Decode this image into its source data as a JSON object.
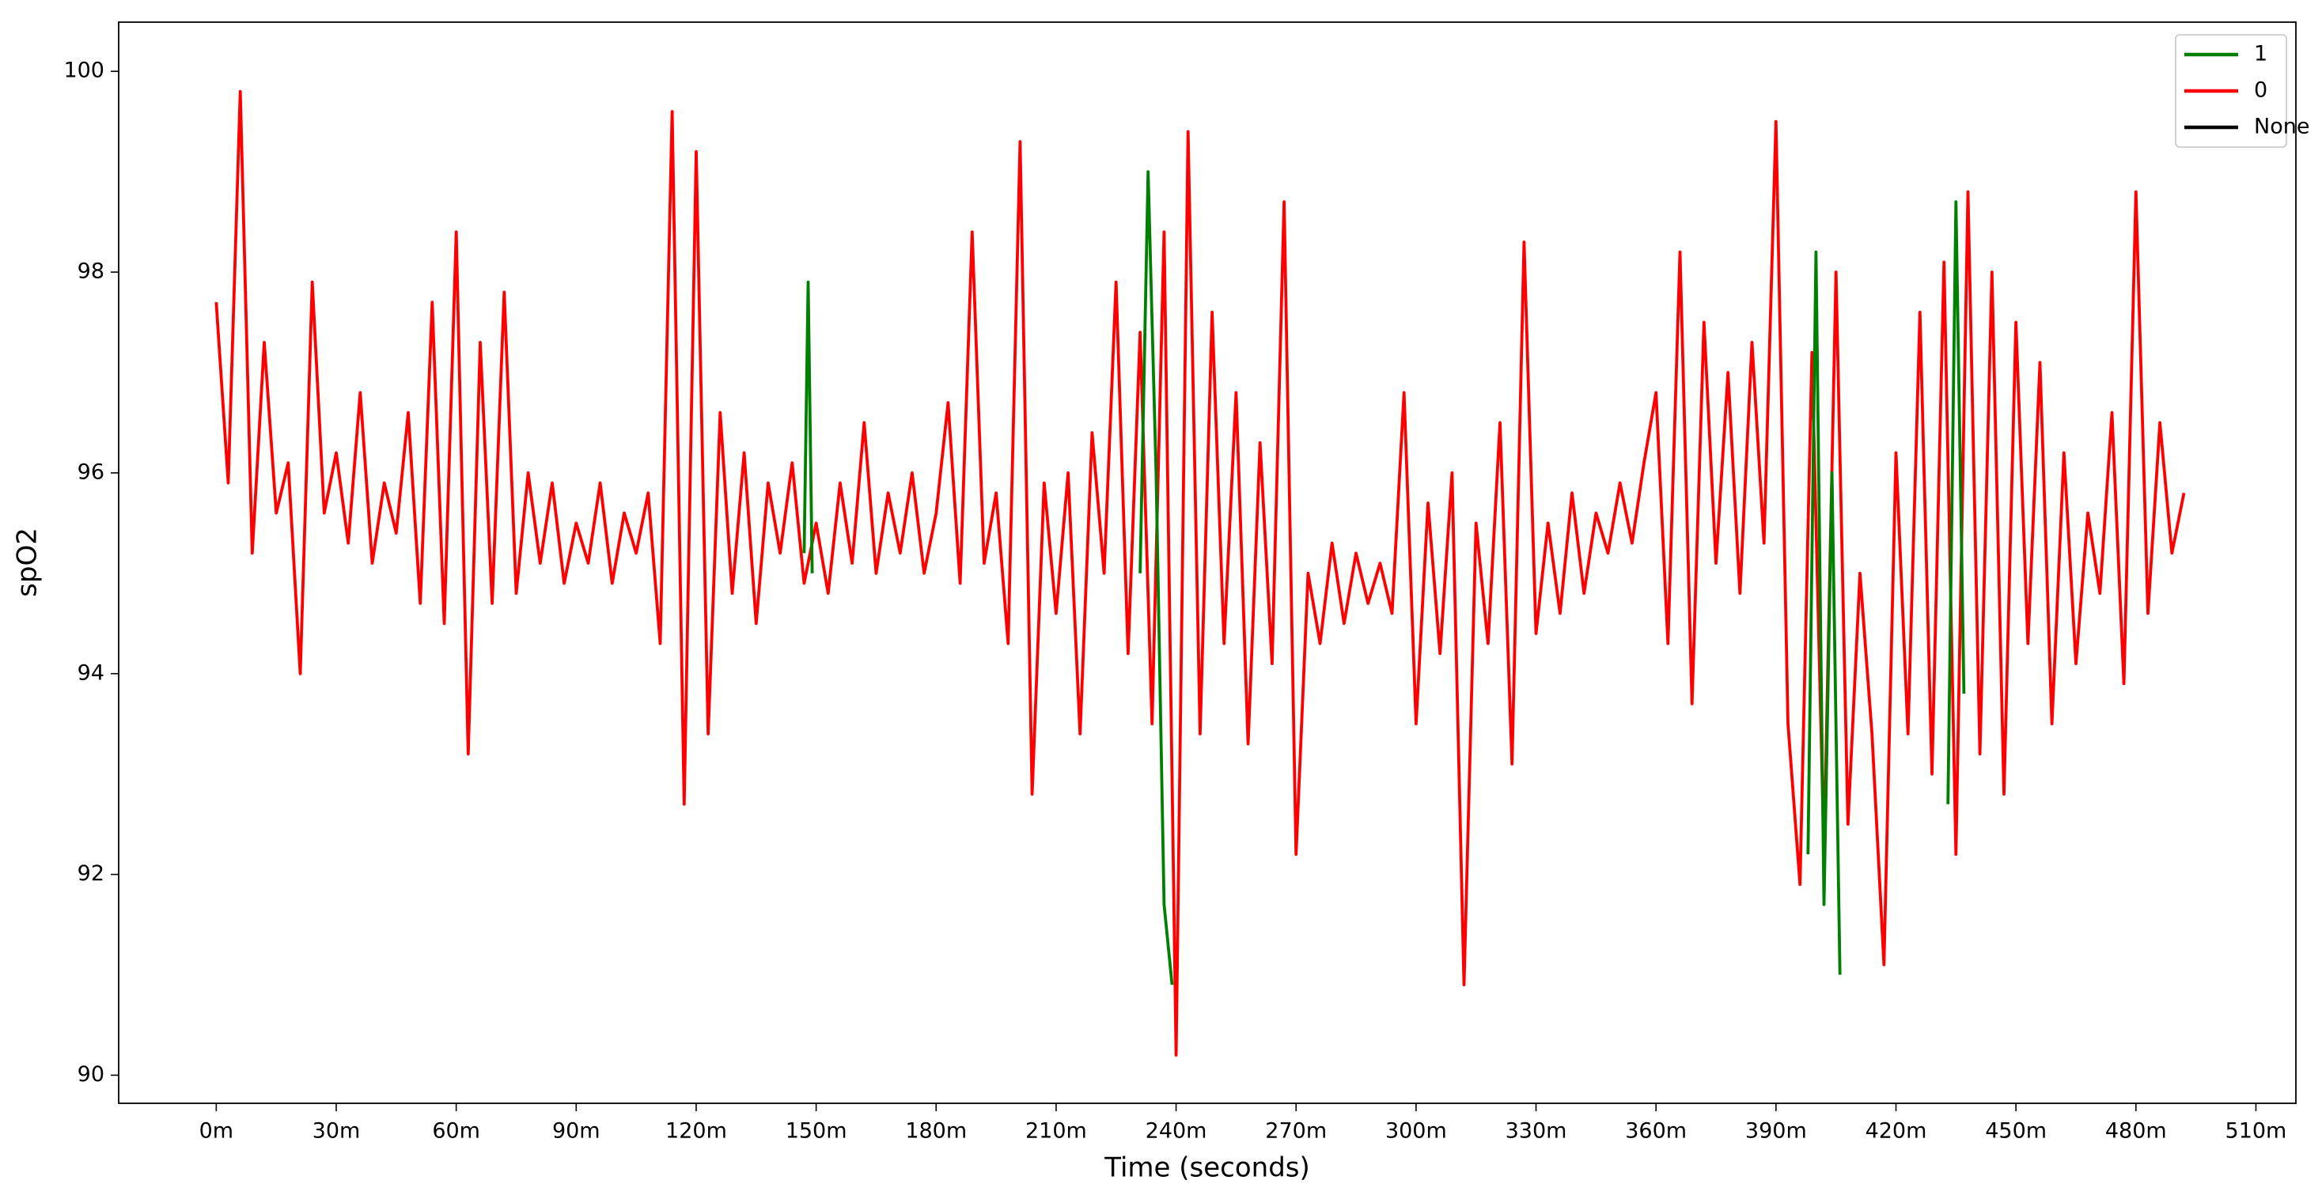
{
  "chart_data": {
    "type": "line",
    "xlabel": "Time (seconds)",
    "ylabel": "spO2",
    "xlim": [
      -24.4,
      520
    ],
    "ylim": [
      89.72,
      100.49
    ],
    "xticks": [
      {
        "value": 0,
        "label": "0m"
      },
      {
        "value": 30,
        "label": "30m"
      },
      {
        "value": 60,
        "label": "60m"
      },
      {
        "value": 90,
        "label": "90m"
      },
      {
        "value": 120,
        "label": "120m"
      },
      {
        "value": 150,
        "label": "150m"
      },
      {
        "value": 180,
        "label": "180m"
      },
      {
        "value": 210,
        "label": "210m"
      },
      {
        "value": 240,
        "label": "240m"
      },
      {
        "value": 270,
        "label": "270m"
      },
      {
        "value": 300,
        "label": "300m"
      },
      {
        "value": 330,
        "label": "330m"
      },
      {
        "value": 360,
        "label": "360m"
      },
      {
        "value": 390,
        "label": "390m"
      },
      {
        "value": 420,
        "label": "420m"
      },
      {
        "value": 450,
        "label": "450m"
      },
      {
        "value": 480,
        "label": "480m"
      },
      {
        "value": 510,
        "label": "510m"
      }
    ],
    "yticks": [
      90,
      92,
      94,
      96,
      98,
      100
    ],
    "legend": "upper right",
    "grid": false,
    "series": [
      {
        "name": "1",
        "color": "#008000",
        "x": [
          147,
          148,
          149,
          150,
          231,
          233,
          235,
          237,
          239,
          300,
          398,
          400,
          402,
          404,
          406,
          420,
          433,
          435,
          437
        ],
        "values": [
          95.2,
          97.9,
          95.0,
          null,
          95.0,
          99.0,
          96.0,
          91.7,
          90.9,
          null,
          92.2,
          98.2,
          91.7,
          96.0,
          91.0,
          null,
          92.7,
          98.7,
          93.8
        ]
      },
      {
        "name": "0",
        "color": "#ff0000",
        "x": [
          0,
          3,
          6,
          9,
          12,
          15,
          18,
          21,
          24,
          27,
          30,
          33,
          36,
          39,
          42,
          45,
          48,
          51,
          54,
          57,
          60,
          63,
          66,
          69,
          72,
          75,
          78,
          81,
          84,
          87,
          90,
          93,
          96,
          99,
          102,
          105,
          108,
          111,
          114,
          117,
          120,
          123,
          126,
          129,
          132,
          135,
          138,
          141,
          144,
          147,
          150,
          153,
          156,
          159,
          162,
          165,
          168,
          171,
          174,
          177,
          180,
          183,
          186,
          189,
          192,
          195,
          198,
          201,
          204,
          207,
          210,
          213,
          216,
          219,
          222,
          225,
          228,
          231,
          234,
          237,
          240,
          243,
          246,
          249,
          252,
          255,
          258,
          261,
          264,
          267,
          270,
          273,
          276,
          279,
          282,
          285,
          288,
          291,
          294,
          297,
          300,
          303,
          306,
          309,
          312,
          315,
          318,
          321,
          324,
          327,
          330,
          333,
          336,
          339,
          342,
          345,
          348,
          351,
          354,
          357,
          360,
          363,
          366,
          369,
          372,
          375,
          378,
          381,
          384,
          387,
          390,
          393,
          396,
          399,
          402,
          405,
          408,
          411,
          414,
          417,
          420,
          423,
          426,
          429,
          432,
          435,
          438,
          441,
          444,
          447,
          450,
          453,
          456,
          459,
          462,
          465,
          468,
          471,
          474,
          477,
          480,
          483,
          486,
          489,
          492
        ],
        "values": [
          97.7,
          95.9,
          99.8,
          95.2,
          97.3,
          95.6,
          96.1,
          94.0,
          97.9,
          95.6,
          96.2,
          95.3,
          96.8,
          95.1,
          95.9,
          95.4,
          96.6,
          94.7,
          97.7,
          94.5,
          98.4,
          93.2,
          97.3,
          94.7,
          97.8,
          94.8,
          96.0,
          95.1,
          95.9,
          94.9,
          95.5,
          95.1,
          95.9,
          94.9,
          95.6,
          95.2,
          95.8,
          94.3,
          99.6,
          92.7,
          99.2,
          93.4,
          96.6,
          94.8,
          96.2,
          94.5,
          95.9,
          95.2,
          96.1,
          94.9,
          95.5,
          94.8,
          95.9,
          95.1,
          96.5,
          95.0,
          95.8,
          95.2,
          96.0,
          95.0,
          95.6,
          96.7,
          94.9,
          98.4,
          95.1,
          95.8,
          94.3,
          99.3,
          92.8,
          95.9,
          94.6,
          96.0,
          93.4,
          96.4,
          95.0,
          97.9,
          94.2,
          97.4,
          93.5,
          98.4,
          90.2,
          99.4,
          93.4,
          97.6,
          94.3,
          96.8,
          93.3,
          96.3,
          94.1,
          98.7,
          92.2,
          95.0,
          94.3,
          95.3,
          94.5,
          95.2,
          94.7,
          95.1,
          94.6,
          96.8,
          93.5,
          95.7,
          94.2,
          96.0,
          90.9,
          95.5,
          94.3,
          96.5,
          93.1,
          98.3,
          94.4,
          95.5,
          94.6,
          95.8,
          94.8,
          95.6,
          95.2,
          95.9,
          95.3,
          96.1,
          96.8,
          94.3,
          98.2,
          93.7,
          97.5,
          95.1,
          97.0,
          94.8,
          97.3,
          95.3,
          99.5,
          93.5,
          91.9,
          97.2,
          92.2,
          98.0,
          92.5,
          95.0,
          93.4,
          91.1,
          96.2,
          93.4,
          97.6,
          93.0,
          98.1,
          92.2,
          98.8,
          93.2,
          98.0,
          92.8,
          97.5,
          94.3,
          97.1,
          93.5,
          96.2,
          94.1,
          95.6,
          94.8,
          96.6,
          93.9,
          98.8,
          94.6,
          96.5,
          95.2,
          95.8
        ]
      },
      {
        "name": "None",
        "color": "#000000",
        "x": [],
        "values": []
      }
    ]
  }
}
